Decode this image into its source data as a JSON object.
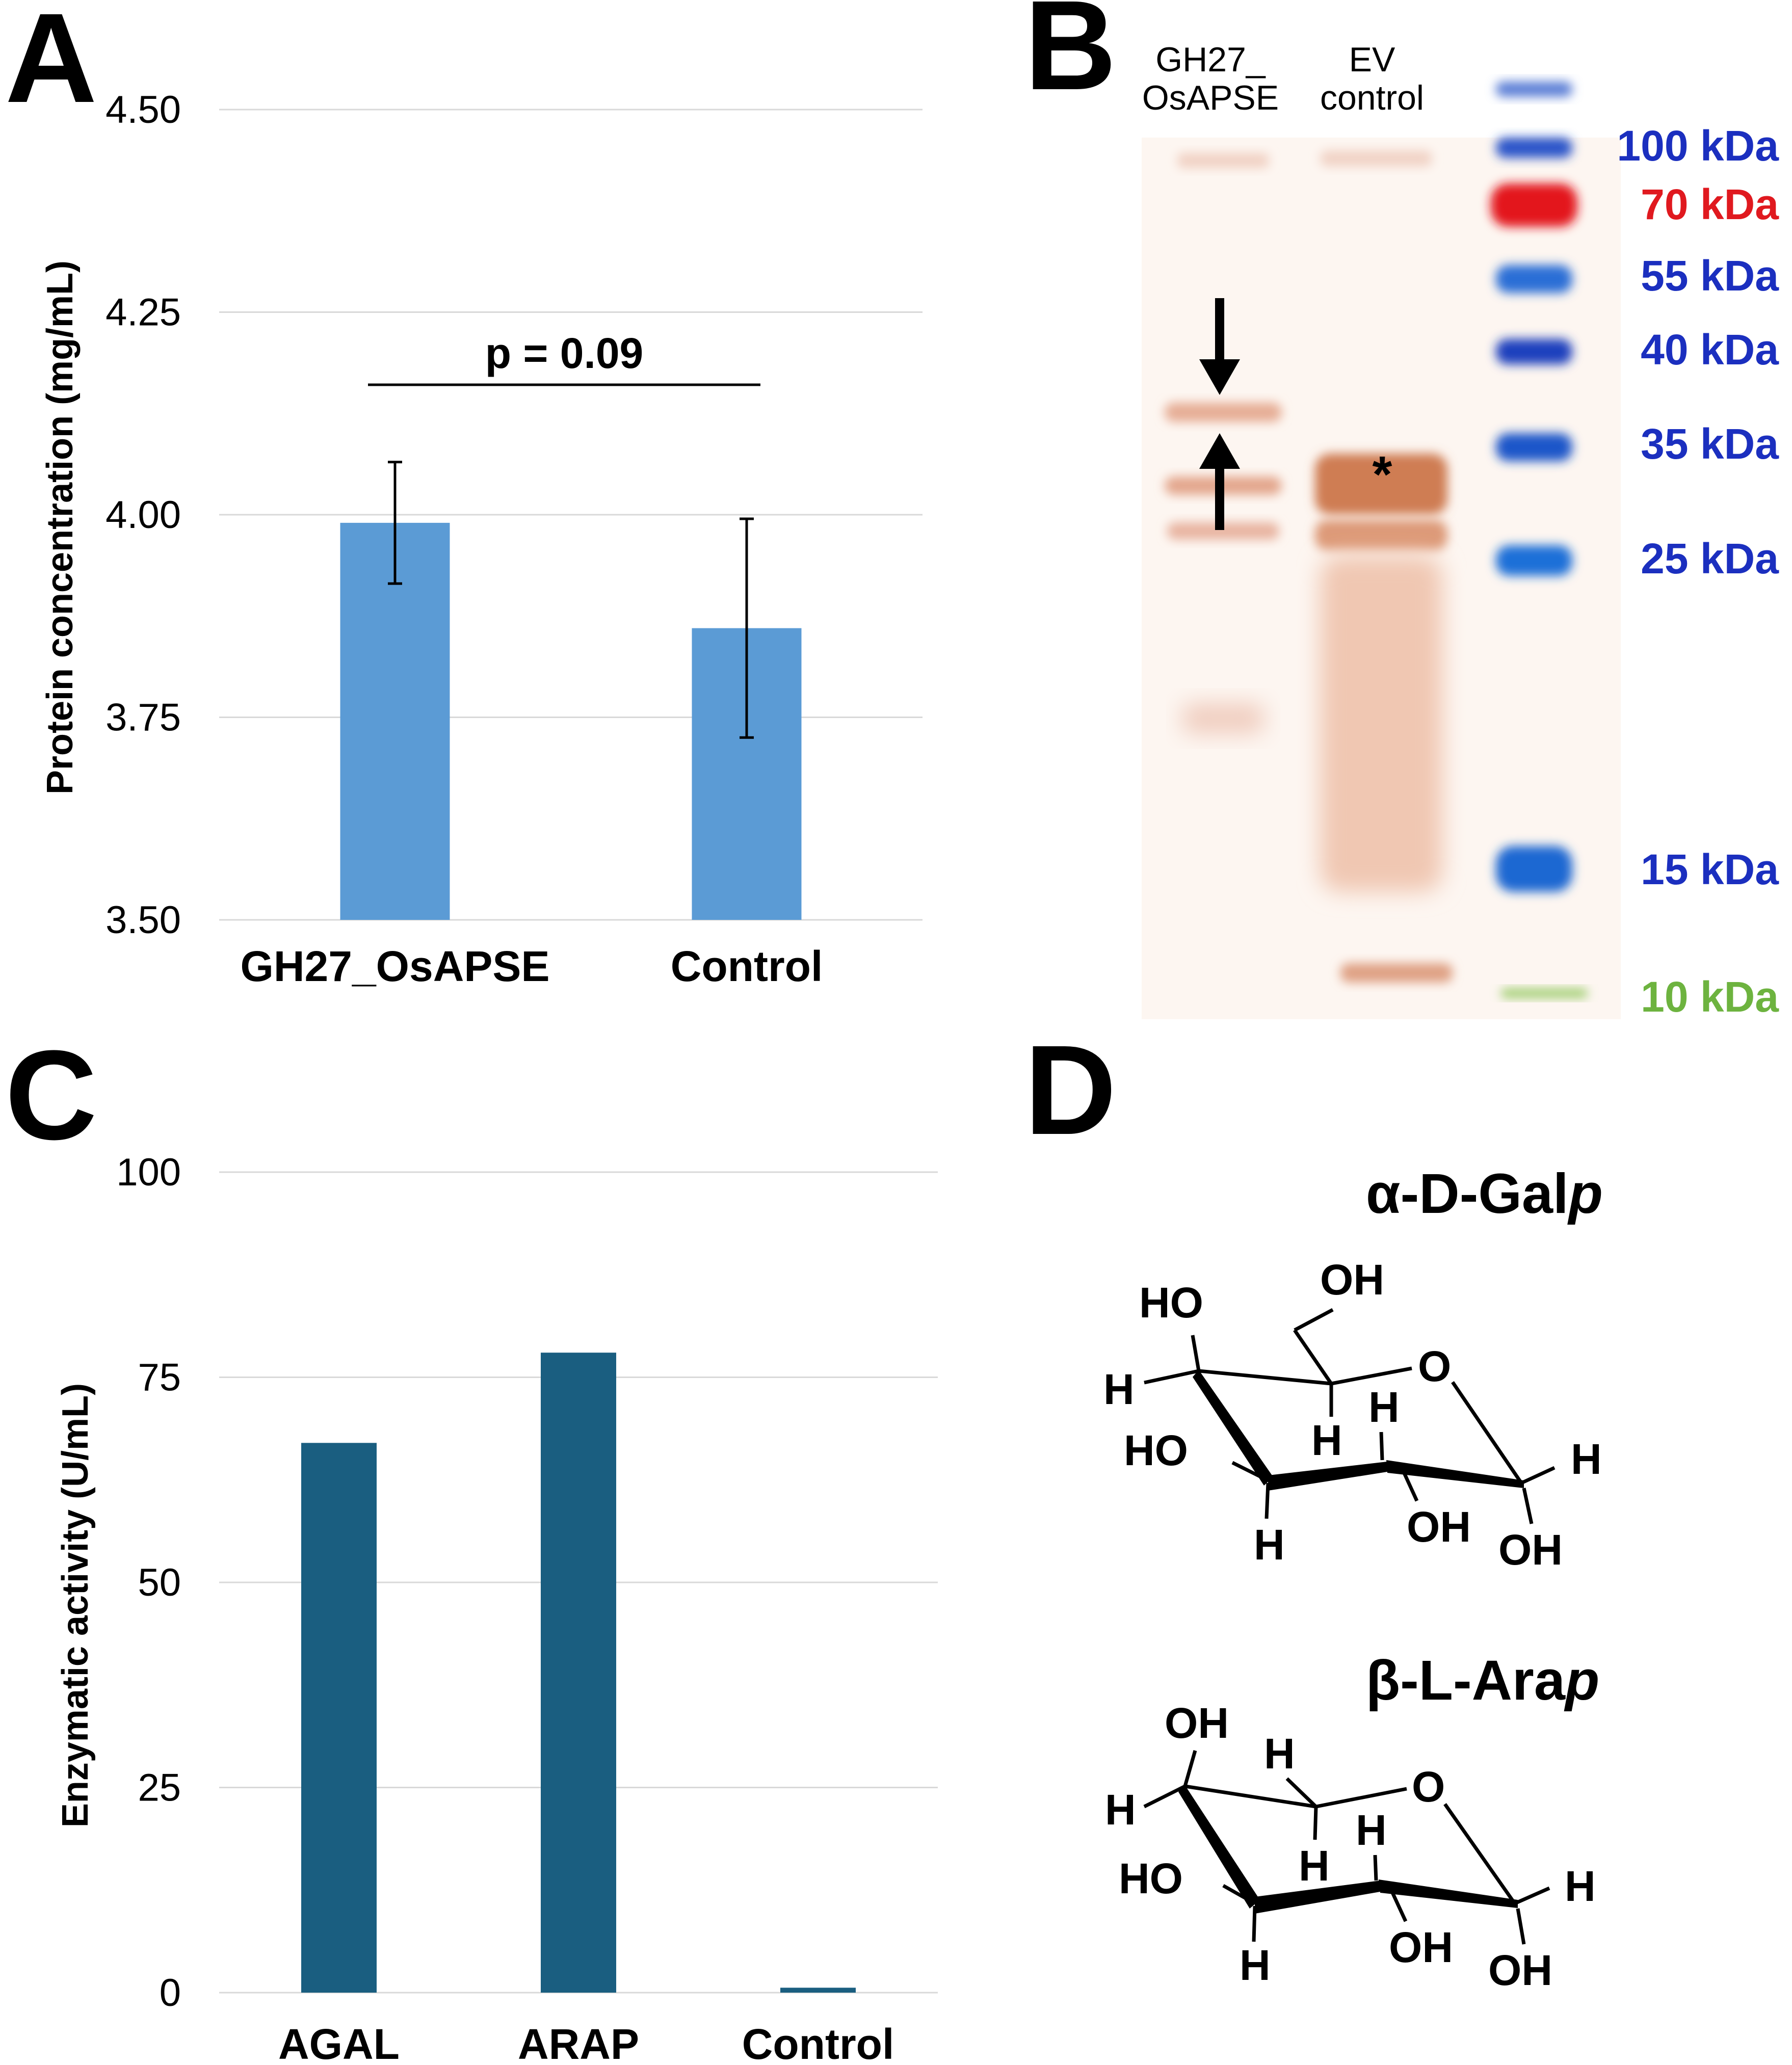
{
  "panels": {
    "a": "A",
    "b": "B",
    "c": "C",
    "d": "D"
  },
  "chart_data": [
    {
      "id": "A",
      "type": "bar",
      "title": "",
      "xlabel": "",
      "ylabel": "Protein concentration (mg/mL)",
      "ylim": [
        3.5,
        4.5
      ],
      "yticks": [
        "3.50",
        "3.75",
        "4.00",
        "4.25",
        "4.50"
      ],
      "ytick_values": [
        3.5,
        3.75,
        4.0,
        4.25,
        4.5
      ],
      "categories": [
        "GH27_OsAPSE",
        "Control"
      ],
      "values": [
        3.99,
        3.86
      ],
      "errors_low": [
        3.915,
        3.725
      ],
      "errors_high": [
        4.065,
        3.995
      ],
      "bar_color": "#5b9bd5",
      "grid": true,
      "annotation": "p = 0.09"
    },
    {
      "id": "C",
      "type": "bar",
      "title": "",
      "xlabel": "",
      "ylabel": "Enzymatic activity (U/mL)",
      "ylim": [
        0,
        100
      ],
      "yticks": [
        "0",
        "25",
        "50",
        "75",
        "100"
      ],
      "ytick_values": [
        0,
        25,
        50,
        75,
        100
      ],
      "categories": [
        "AGAL",
        "ARAP",
        "Control"
      ],
      "values": [
        67,
        78,
        0.6
      ],
      "bar_color": "#1a5e80",
      "grid": true
    }
  ],
  "gel": {
    "lane1_label_line1": "GH27_",
    "lane1_label_line2": "OsAPSE",
    "lane2_label_line1": "EV",
    "lane2_label_line2": "control",
    "asterisk": "*",
    "markers": [
      {
        "label": "100 kDa",
        "color": "#1b2fbf"
      },
      {
        "label": "70 kDa",
        "color": "#e0191f"
      },
      {
        "label": "55 kDa",
        "color": "#1b2fbf"
      },
      {
        "label": "40 kDa",
        "color": "#1b2fbf"
      },
      {
        "label": "35 kDa",
        "color": "#1b2fbf"
      },
      {
        "label": "25 kDa",
        "color": "#1b2fbf"
      },
      {
        "label": "15 kDa",
        "color": "#1b2fbf"
      },
      {
        "label": "10 kDa",
        "color": "#6db33f"
      }
    ]
  },
  "structures": {
    "gal": {
      "title_prefix": "α-D-Gal",
      "title_suffix": "p",
      "atoms": {
        "oh_top": "OH",
        "ho_c4": "HO",
        "h_c4": "H",
        "o_ring": "O",
        "h_c5": "H",
        "h_c3": "H",
        "ho_c3": "HO",
        "h_c2": "H",
        "oh_c2": "OH",
        "h_c1": "H",
        "oh_c1": "OH"
      }
    },
    "ara": {
      "title_prefix": "β-L-Ara",
      "title_suffix": "p",
      "atoms": {
        "oh_c4": "OH",
        "h_c5": "H",
        "h_c4": "H",
        "o_ring": "O",
        "h_c3": "H",
        "h_c5b": "H",
        "ho_c3": "HO",
        "h_c2": "H",
        "oh_c2": "OH",
        "h_c1": "H",
        "oh_c1": "OH"
      }
    }
  }
}
